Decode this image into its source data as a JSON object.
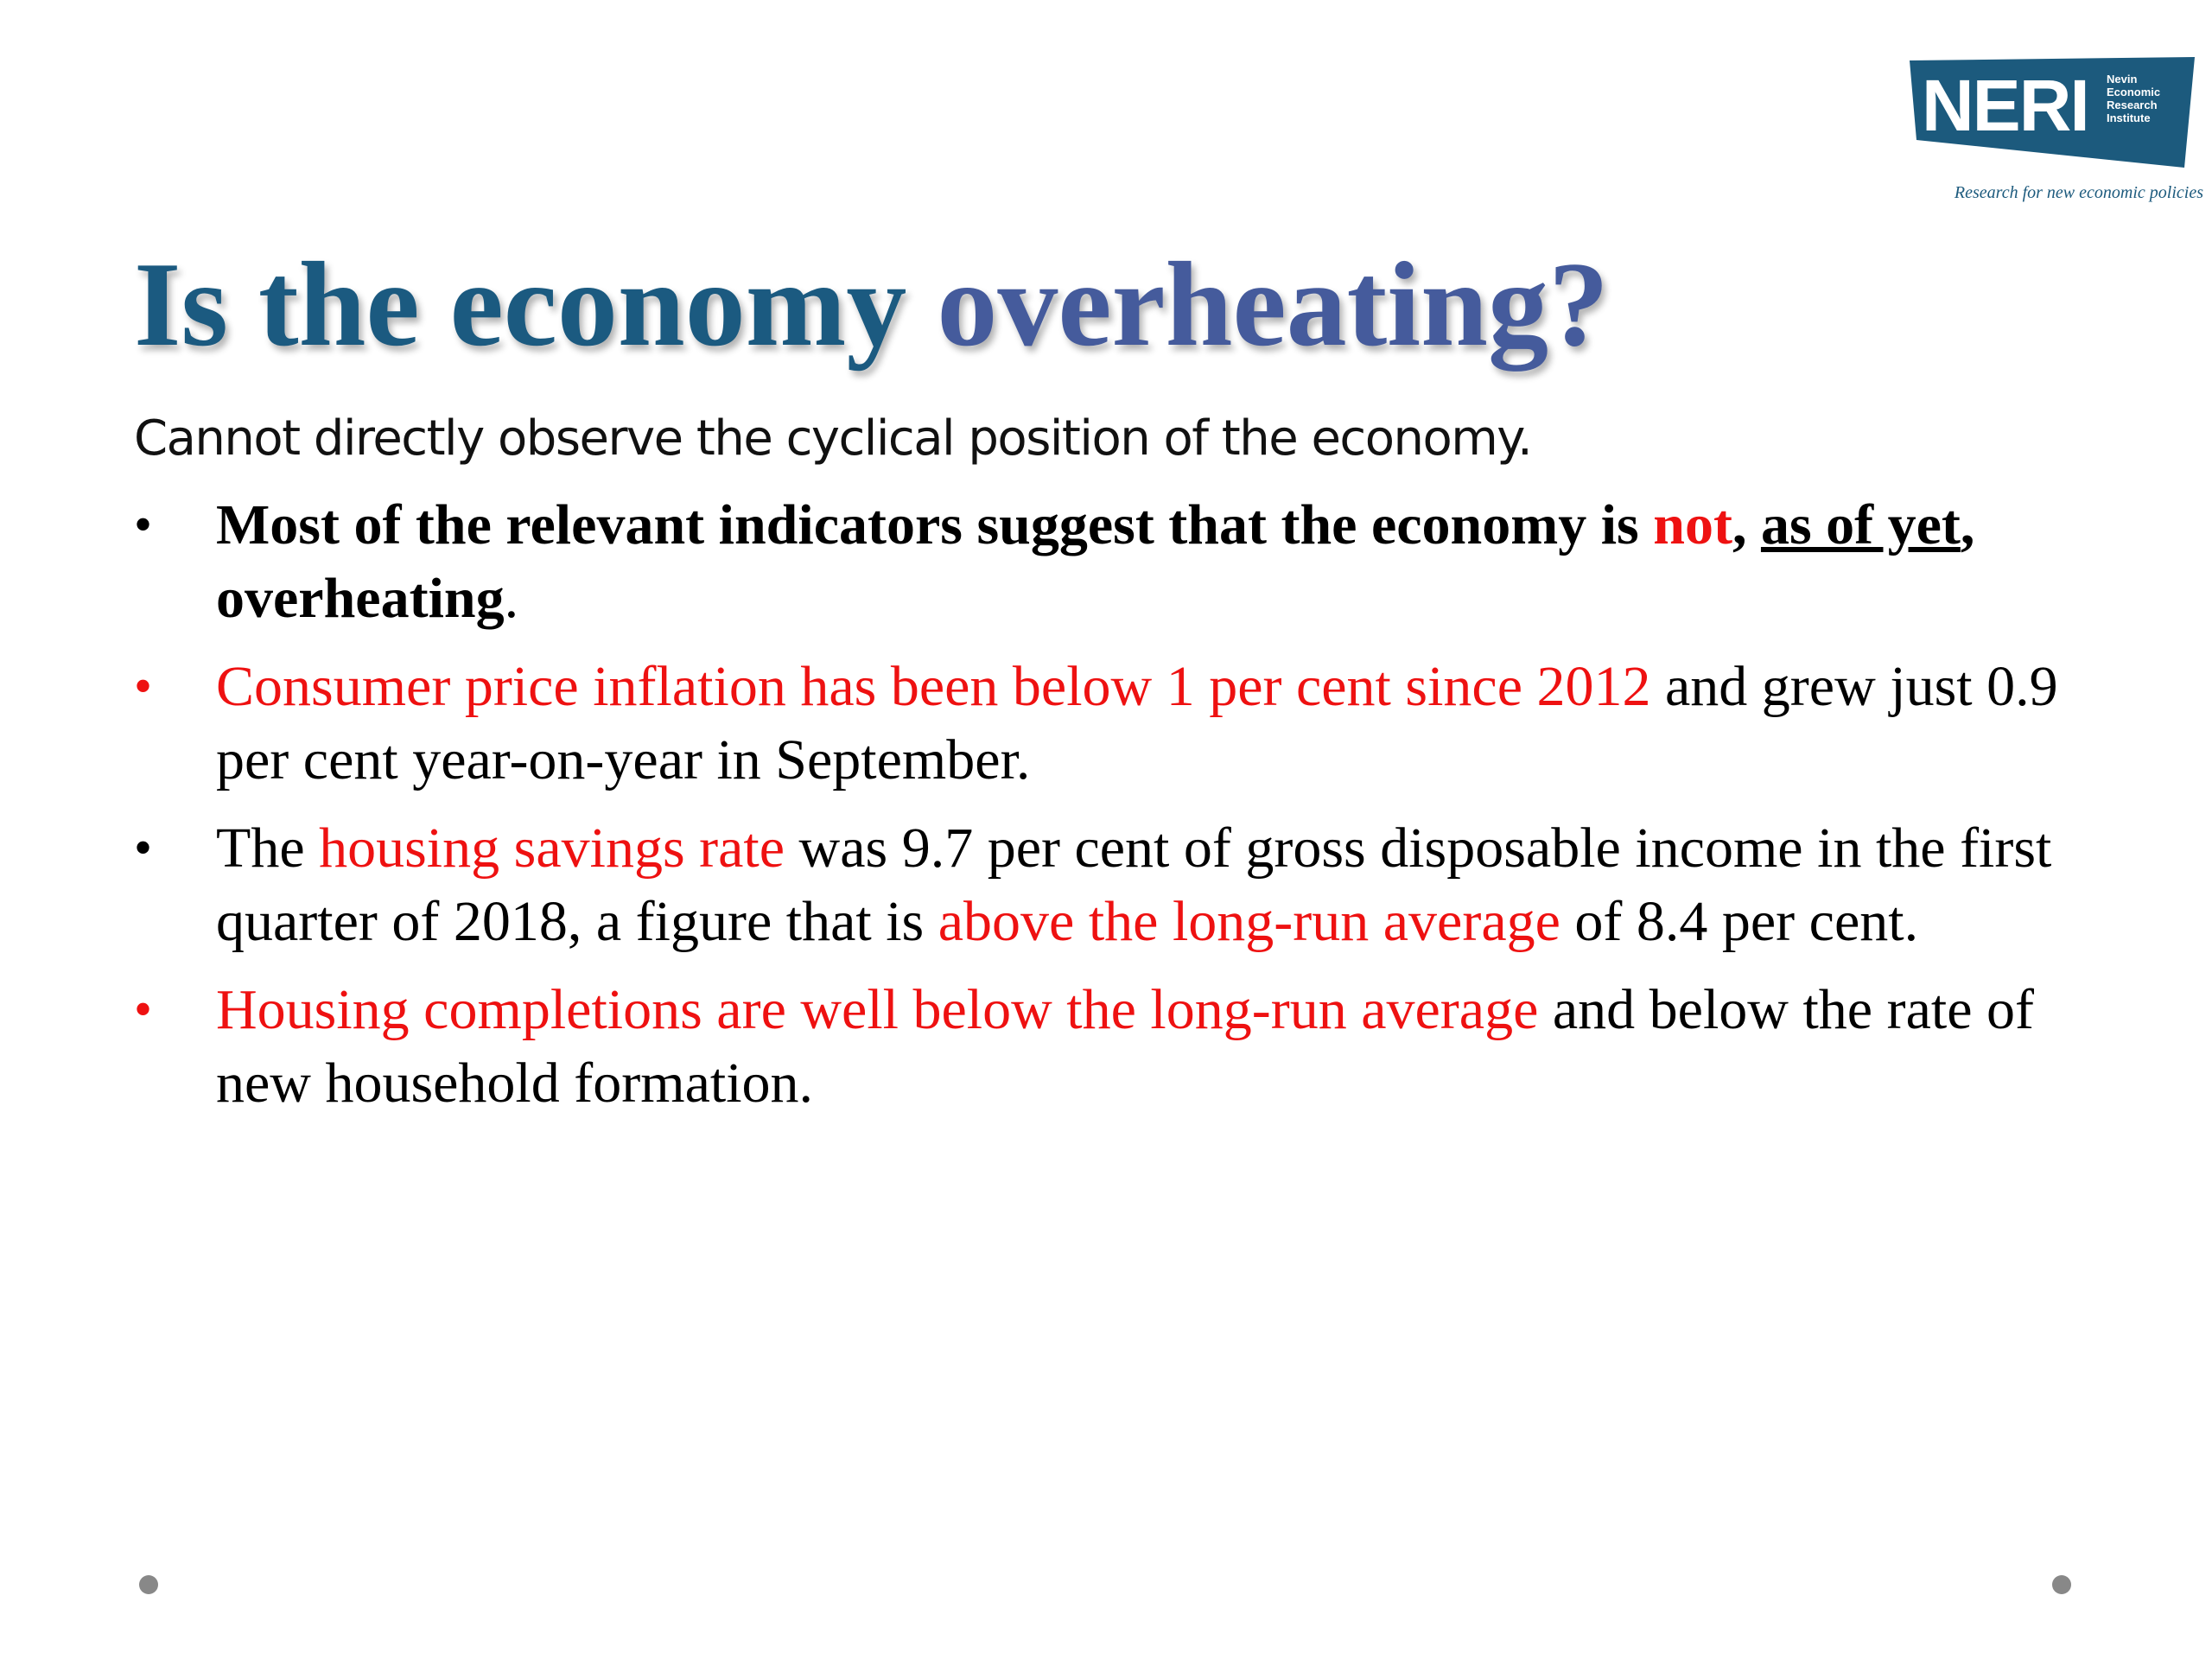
{
  "logo": {
    "wordmark": "NERI",
    "subtitle_lines": [
      "Nevin",
      "Economic",
      "Research",
      "Institute"
    ],
    "tagline": "Research for new economic policies"
  },
  "title": {
    "part_1": "Is the economy ",
    "part_2": "overheating?"
  },
  "intro": "Cannot directly observe the cyclical position of the economy.",
  "bullets": [
    {
      "bullet_color": "#000000",
      "segments": [
        {
          "text": "Most of the relevant indicators suggest that the economy is ",
          "style": "bold"
        },
        {
          "text": "not",
          "style": "bold red"
        },
        {
          "text": ", ",
          "style": "bold"
        },
        {
          "text": "as of yet",
          "style": "bold underline"
        },
        {
          "text": ", overheating",
          "style": "bold"
        },
        {
          "text": ".",
          "style": ""
        }
      ]
    },
    {
      "bullet_color": "#ee1111",
      "segments": [
        {
          "text": "Consumer price inflation has been below 1 per cent since 2012",
          "style": "red"
        },
        {
          "text": " and grew just 0.9 per cent year-on-year in September.",
          "style": ""
        }
      ]
    },
    {
      "bullet_color": "#000000",
      "segments": [
        {
          "text": "The ",
          "style": ""
        },
        {
          "text": "housing savings rate",
          "style": "red"
        },
        {
          "text": " was 9.7 per cent of gross disposable income in the first quarter of 2018, a figure that is ",
          "style": ""
        },
        {
          "text": "above the long-run average",
          "style": "red"
        },
        {
          "text": " of 8.4 per cent.",
          "style": ""
        }
      ]
    },
    {
      "bullet_color": "#ee1111",
      "segments": [
        {
          "text": "Housing completions are well below the long-run average",
          "style": "red"
        },
        {
          "text": " and below the rate of new household formation.",
          "style": ""
        }
      ]
    }
  ],
  "colors": {
    "title_primary": "#1b5a80",
    "title_secondary": "#455b9c",
    "accent_red": "#ee1111",
    "logo_blue": "#1c5a7d"
  }
}
